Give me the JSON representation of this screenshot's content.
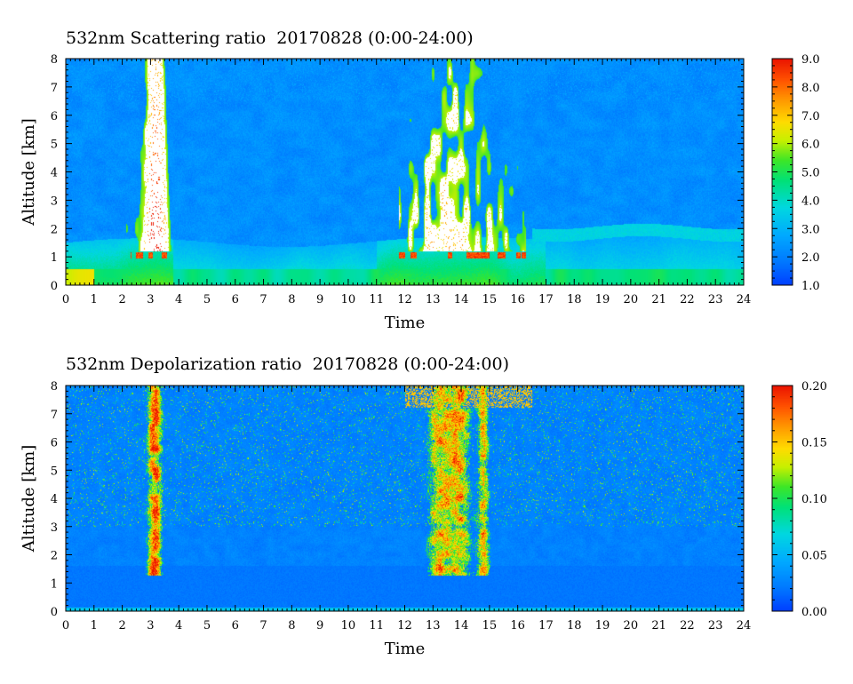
{
  "chart_data": [
    {
      "type": "heatmap",
      "title": "532nm Scattering ratio  20170828 (0:00-24:00)",
      "xlabel": "Time",
      "ylabel": "Altitude [km]",
      "x_ticks": [
        "0",
        "1",
        "2",
        "3",
        "4",
        "5",
        "6",
        "7",
        "8",
        "9",
        "10",
        "11",
        "12",
        "13",
        "14",
        "15",
        "16",
        "17",
        "18",
        "19",
        "20",
        "21",
        "22",
        "23",
        "24"
      ],
      "y_ticks": [
        "0",
        "1",
        "2",
        "3",
        "4",
        "5",
        "6",
        "7",
        "8"
      ],
      "xlim": [
        0,
        24
      ],
      "ylim": [
        0,
        8
      ],
      "colorbar": {
        "range": [
          1.0,
          9.0
        ],
        "ticks": [
          "1.0",
          "2.0",
          "3.0",
          "4.0",
          "5.0",
          "6.0",
          "7.0",
          "8.0",
          "9.0"
        ]
      },
      "features": {
        "boundary_layer_top_km": 1.5,
        "cloud_periods_hours": [
          [
            1.0,
            3.8
          ],
          [
            11.8,
            16.3
          ]
        ],
        "cloud_base_km": 1.2
      }
    },
    {
      "type": "heatmap",
      "title": "532nm Depolarization ratio  20170828 (0:00-24:00)",
      "xlabel": "Time",
      "ylabel": "Altitude [km]",
      "x_ticks": [
        "0",
        "1",
        "2",
        "3",
        "4",
        "5",
        "6",
        "7",
        "8",
        "9",
        "10",
        "11",
        "12",
        "13",
        "14",
        "15",
        "16",
        "17",
        "18",
        "19",
        "20",
        "21",
        "22",
        "23",
        "24"
      ],
      "y_ticks": [
        "0",
        "1",
        "2",
        "3",
        "4",
        "5",
        "6",
        "7",
        "8"
      ],
      "xlim": [
        0,
        24
      ],
      "ylim": [
        0,
        8
      ],
      "colorbar": {
        "range": [
          0.0,
          0.2
        ],
        "ticks": [
          "0.00",
          "0.05",
          "0.10",
          "0.15",
          "0.20"
        ]
      },
      "features": {
        "high_depol_periods_hours": [
          [
            2.8,
            3.6
          ],
          [
            12.8,
            15.0
          ]
        ]
      }
    }
  ]
}
